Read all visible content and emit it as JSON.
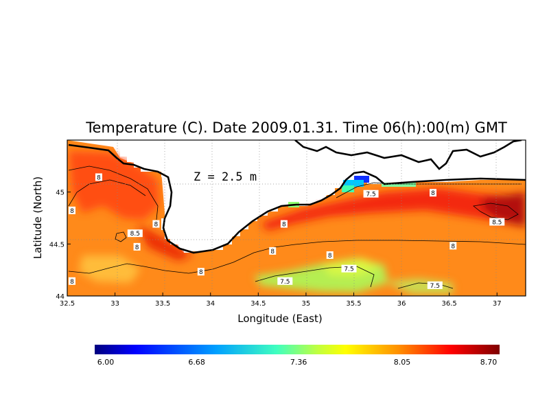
{
  "map": {
    "title": "Temperature (C). Date 2009.01.31. Time 06(h):00(m) GMT",
    "depth_label": "Z = 2.5 m",
    "xlabel": "Longitude (East)",
    "ylabel": "Latitude (North)",
    "lon_range": [
      32.5,
      37.3
    ],
    "lat_range": [
      44.0,
      45.5
    ],
    "lon_ticks": [
      "32.5",
      "33",
      "33.5",
      "34",
      "34.5",
      "35",
      "35.5",
      "36",
      "36.5",
      "37"
    ],
    "lat_ticks": [
      "44",
      "44.5",
      "45"
    ],
    "contour_labels": [
      {
        "text": "8",
        "lon": 32.83,
        "lat": 45.14
      },
      {
        "text": "8",
        "lon": 32.55,
        "lat": 44.82
      },
      {
        "text": "8",
        "lon": 32.55,
        "lat": 44.14
      },
      {
        "text": "8.5",
        "lon": 33.21,
        "lat": 44.6
      },
      {
        "text": "8",
        "lon": 33.23,
        "lat": 44.47
      },
      {
        "text": "8",
        "lon": 33.43,
        "lat": 44.69
      },
      {
        "text": "8",
        "lon": 33.9,
        "lat": 44.23
      },
      {
        "text": "8",
        "lon": 34.77,
        "lat": 44.69
      },
      {
        "text": "8",
        "lon": 34.65,
        "lat": 44.43
      },
      {
        "text": "8",
        "lon": 35.25,
        "lat": 44.39
      },
      {
        "text": "7.5",
        "lon": 34.78,
        "lat": 44.14
      },
      {
        "text": "7.5",
        "lon": 35.45,
        "lat": 44.26
      },
      {
        "text": "7.5",
        "lon": 35.68,
        "lat": 44.98
      },
      {
        "text": "8",
        "lon": 36.33,
        "lat": 44.99
      },
      {
        "text": "8",
        "lon": 36.54,
        "lat": 44.48
      },
      {
        "text": "7.5",
        "lon": 36.35,
        "lat": 44.1
      },
      {
        "text": "8.5",
        "lon": 37.0,
        "lat": 44.71
      }
    ],
    "colorbar": {
      "ticks": [
        "6.00",
        "6.68",
        "7.36",
        "8.05",
        "8.70"
      ],
      "colors": [
        "#00007f",
        "#0000ff",
        "#007fff",
        "#00ffff",
        "#7fff7f",
        "#ffff00",
        "#ff7f00",
        "#ff0000",
        "#7f0000"
      ]
    }
  }
}
